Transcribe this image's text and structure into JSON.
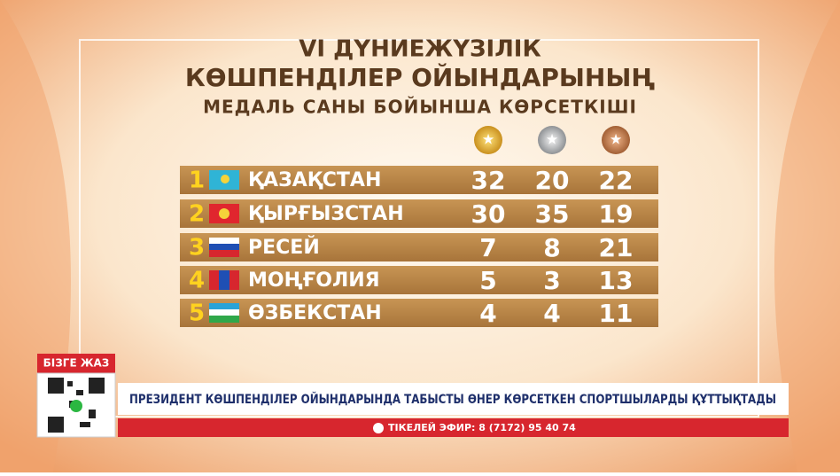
{
  "header": {
    "title_line1": "VI ДҮНИЕЖҮЗІЛІК",
    "title_line2": "КӨШПЕНДІЛЕР ОЙЫНДАРЫНЫҢ",
    "subtitle": "МЕДАЛЬ САНЫ БОЙЫНША КӨРСЕТКІШІ"
  },
  "table": {
    "rows": [
      [
        1,
        "ҚАЗАҚСТАН",
        32,
        20,
        22
      ],
      [
        2,
        "ҚЫРҒЫЗСТАН",
        30,
        35,
        19
      ],
      [
        3,
        "РЕСЕЙ",
        7,
        8,
        21
      ],
      [
        4,
        "МОҢҒОЛИЯ",
        5,
        3,
        13
      ],
      [
        5,
        "ӨЗБЕКСТАН",
        4,
        4,
        11
      ]
    ]
  },
  "sidebar": {
    "label": "БІЗГЕ ЖАЗ"
  },
  "ticker": {
    "headline": "ПРЕЗИДЕНТ КӨШПЕНДІЛЕР ОЙЫНДАРЫНДА ТАБЫСТЫ ӨНЕР КӨРСЕТКЕН СПОРТШЫЛАРДЫ ҚҰТТЫҚТАДЫ",
    "contact": "ТІКЕЛЕЙ ЭФИР: 8 (7172) 95 40 74"
  }
}
